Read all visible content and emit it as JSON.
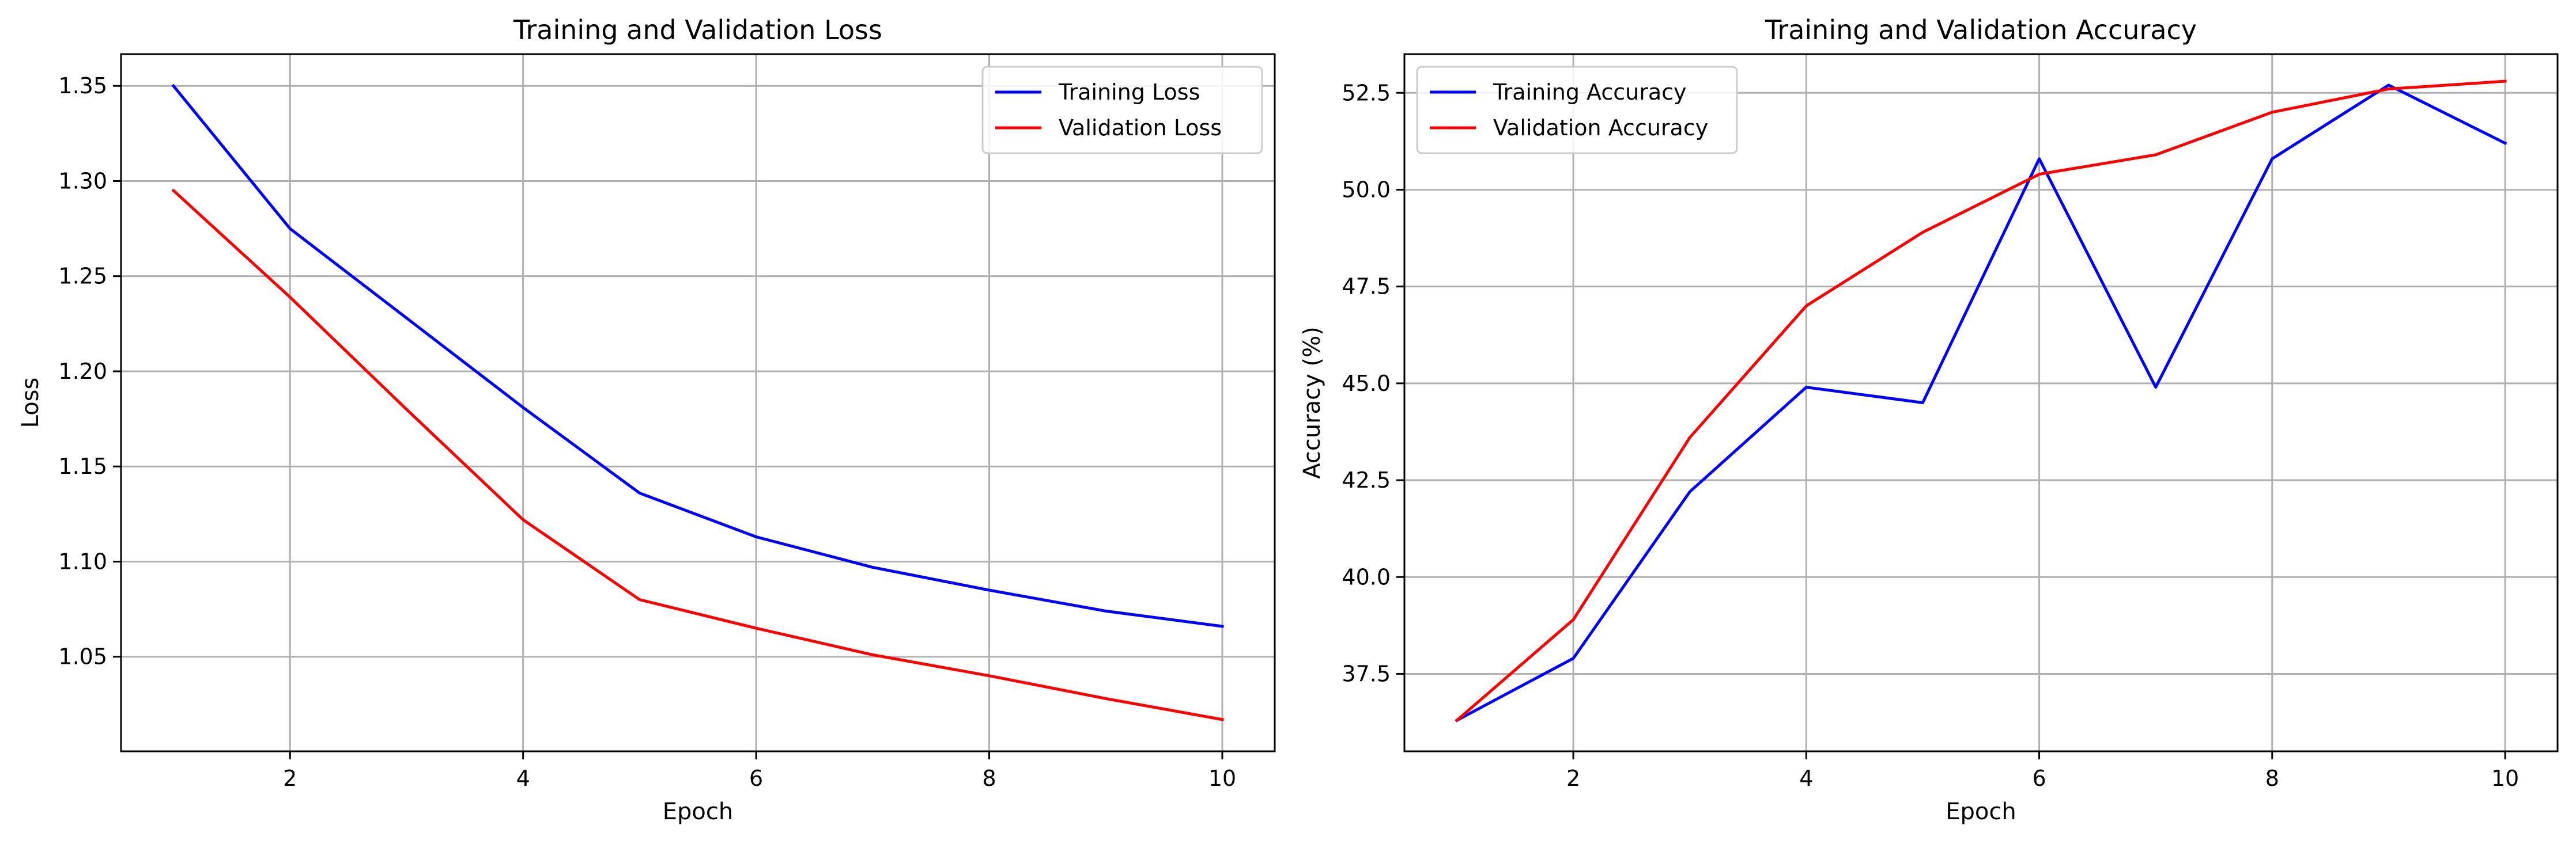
{
  "chart_data": [
    {
      "type": "line",
      "title": "Training and Validation Loss",
      "xlabel": "Epoch",
      "ylabel": "Loss",
      "xlim": [
        0.55,
        10.45
      ],
      "ylim": [
        1.0003,
        1.3667
      ],
      "xticks": [
        2,
        4,
        6,
        8,
        10
      ],
      "xtick_labels": [
        "2",
        "4",
        "6",
        "8",
        "10"
      ],
      "yticks": [
        1.05,
        1.1,
        1.15,
        1.2,
        1.25,
        1.3,
        1.35
      ],
      "ytick_labels": [
        "1.05",
        "1.10",
        "1.15",
        "1.20",
        "1.25",
        "1.30",
        "1.35"
      ],
      "grid": true,
      "legend_position": "top-right",
      "x": [
        1,
        2,
        3,
        4,
        5,
        6,
        7,
        8,
        9,
        10
      ],
      "series": [
        {
          "name": "Training Loss",
          "color": "#0000ff",
          "values": [
            1.35,
            1.275,
            1.228,
            1.181,
            1.136,
            1.113,
            1.097,
            1.085,
            1.074,
            1.066
          ]
        },
        {
          "name": "Validation Loss",
          "color": "#ff0000",
          "values": [
            1.295,
            1.239,
            1.18,
            1.122,
            1.08,
            1.065,
            1.051,
            1.04,
            1.028,
            1.017
          ]
        }
      ]
    },
    {
      "type": "line",
      "title": "Training and Validation Accuracy",
      "xlabel": "Epoch",
      "ylabel": "Accuracy (%)",
      "xlim": [
        0.55,
        10.45
      ],
      "ylim": [
        35.5,
        53.5
      ],
      "xticks": [
        2,
        4,
        6,
        8,
        10
      ],
      "xtick_labels": [
        "2",
        "4",
        "6",
        "8",
        "10"
      ],
      "yticks": [
        37.5,
        40.0,
        42.5,
        45.0,
        47.5,
        50.0,
        52.5
      ],
      "ytick_labels": [
        "37.5",
        "40.0",
        "42.5",
        "45.0",
        "47.5",
        "50.0",
        "52.5"
      ],
      "grid": true,
      "legend_position": "top-left",
      "x": [
        1,
        2,
        3,
        4,
        5,
        6,
        7,
        8,
        9,
        10
      ],
      "series": [
        {
          "name": "Training Accuracy",
          "color": "#0000ff",
          "values": [
            36.3,
            37.9,
            42.2,
            44.9,
            44.5,
            50.8,
            44.9,
            50.8,
            52.7,
            51.2
          ]
        },
        {
          "name": "Validation Accuracy",
          "color": "#ff0000",
          "values": [
            36.3,
            38.9,
            43.6,
            47.0,
            48.9,
            50.4,
            50.9,
            52.0,
            52.6,
            52.8
          ]
        }
      ]
    }
  ]
}
